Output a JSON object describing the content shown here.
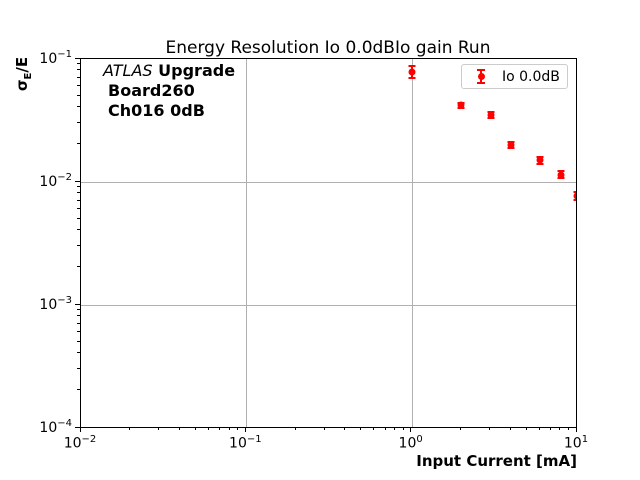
{
  "title": "Energy Resolution Io 0.0dBIo gain Run",
  "annotation": {
    "line1_italic": "ATLAS",
    "line1_bold": "Upgrade",
    "line2": "Board260",
    "line3": "Ch016 0dB"
  },
  "legend": {
    "label": "Io 0.0dB",
    "position": "upper right",
    "marker_color": "#ff0000",
    "border_color": "#cccccc"
  },
  "axes": {
    "xlabel": "Input Current [mA]",
    "ylabel_sym": "σ",
    "ylabel_sub": "E",
    "ylabel_rest": "/E",
    "tick_base": "10",
    "grid_color": "#b0b0b0",
    "spine_color": "#000000"
  },
  "chart_data": {
    "type": "scatter",
    "title": "Energy Resolution Io 0.0dBIo gain Run",
    "xlabel": "Input Current [mA]",
    "ylabel": "σ_E/E",
    "x_scale": "log",
    "y_scale": "log",
    "xlim": [
      0.01,
      10
    ],
    "ylim": [
      0.0001,
      0.1
    ],
    "x_tick_exponents": [
      -2,
      -1,
      0,
      1
    ],
    "y_tick_exponents": [
      -1,
      -2,
      -3,
      -4
    ],
    "grid": true,
    "legend_position": "upper right",
    "series": [
      {
        "name": "Io 0.0dB",
        "color": "#ff0000",
        "marker": "o",
        "x": [
          1.0,
          2.0,
          3.0,
          4.0,
          6.0,
          8.0,
          10.0
        ],
        "y": [
          0.079,
          0.042,
          0.035,
          0.02,
          0.015,
          0.0115,
          0.0077
        ],
        "yerr": [
          0.009,
          0.002,
          0.002,
          0.0012,
          0.001,
          0.0008,
          0.0006
        ]
      }
    ]
  }
}
